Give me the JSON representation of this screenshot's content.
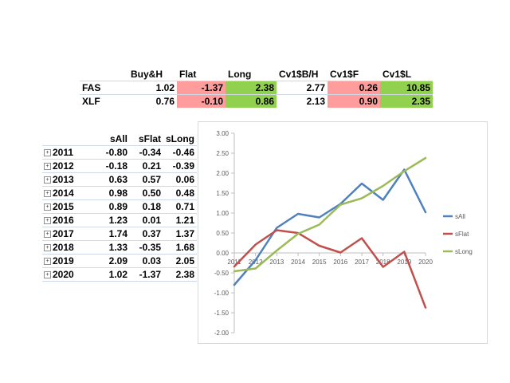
{
  "summary_table": {
    "columns": [
      "",
      "Buy&H",
      "Flat",
      "Long",
      "Cv1$B/H",
      "Cv1$F",
      "Cv1$L"
    ],
    "rows": [
      {
        "label": "FAS",
        "cells": [
          "1.02",
          "-1.37",
          "2.38",
          "2.77",
          "0.26",
          "10.85"
        ]
      },
      {
        "label": "XLF",
        "cells": [
          "0.76",
          "-0.10",
          "0.86",
          "2.13",
          "0.90",
          "2.35"
        ]
      }
    ],
    "highlight_colors": {
      "red": "#ff9c9c",
      "green": "#92d050"
    }
  },
  "pivot_table": {
    "columns": [
      "",
      "sAll",
      "sFlat",
      "sLong"
    ],
    "expand_icon": "plus-box-icon",
    "expand_glyph": "+",
    "rows": [
      {
        "year": "2011",
        "cells": [
          "-0.80",
          "-0.34",
          "-0.46"
        ]
      },
      {
        "year": "2012",
        "cells": [
          "-0.18",
          "0.21",
          "-0.39"
        ]
      },
      {
        "year": "2013",
        "cells": [
          "0.63",
          "0.57",
          "0.06"
        ]
      },
      {
        "year": "2014",
        "cells": [
          "0.98",
          "0.50",
          "0.48"
        ]
      },
      {
        "year": "2015",
        "cells": [
          "0.89",
          "0.18",
          "0.71"
        ]
      },
      {
        "year": "2016",
        "cells": [
          "1.23",
          "0.01",
          "1.21"
        ]
      },
      {
        "year": "2017",
        "cells": [
          "1.74",
          "0.37",
          "1.37"
        ]
      },
      {
        "year": "2018",
        "cells": [
          "1.33",
          "-0.35",
          "1.68"
        ]
      },
      {
        "year": "2019",
        "cells": [
          "2.09",
          "0.03",
          "2.05"
        ]
      },
      {
        "year": "2020",
        "cells": [
          "1.02",
          "-1.37",
          "2.38"
        ]
      }
    ]
  },
  "chart_data": {
    "type": "line",
    "categories": [
      "2011",
      "2012",
      "2013",
      "2014",
      "2015",
      "2016",
      "2017",
      "2018",
      "2019",
      "2020"
    ],
    "series": [
      {
        "name": "sAll",
        "color": "#4f81bd",
        "values": [
          -0.8,
          -0.18,
          0.63,
          0.98,
          0.89,
          1.23,
          1.74,
          1.33,
          2.09,
          1.02
        ]
      },
      {
        "name": "sFlat",
        "color": "#c0504d",
        "values": [
          -0.34,
          0.21,
          0.57,
          0.5,
          0.18,
          0.01,
          0.37,
          -0.35,
          0.03,
          -1.37
        ]
      },
      {
        "name": "sLong",
        "color": "#9bbb59",
        "values": [
          -0.46,
          -0.39,
          0.06,
          0.48,
          0.71,
          1.21,
          1.37,
          1.68,
          2.05,
          2.38
        ]
      }
    ],
    "ylim": [
      -2.0,
      3.0
    ],
    "yticks": [
      "3.00",
      "2.50",
      "2.00",
      "1.50",
      "1.00",
      "0.50",
      "0.00",
      "-0.50",
      "-1.00",
      "-1.50",
      "-2.00"
    ],
    "grid": false,
    "legend_position": "right",
    "axis_color": "#bfbfbf",
    "label_color": "#595959"
  }
}
